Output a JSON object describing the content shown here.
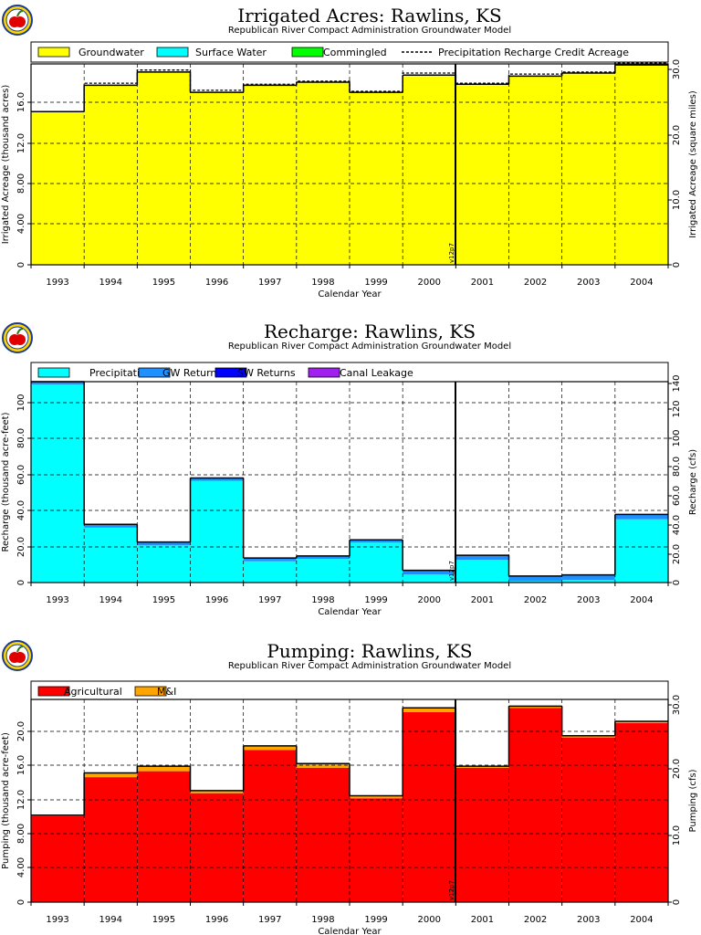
{
  "chart_data": [
    {
      "type": "bar",
      "stacked": true,
      "title": "Irrigated Acres: Rawlins, KS",
      "subtitle": "Republican River Compact Administration Groundwater Model",
      "xlabel": "Calendar Year",
      "ylabel": "Irrigated Acreage (thousand acres)",
      "ylabel_right": "Irrigated Acreage (square miles)",
      "categories": [
        "1993",
        "1994",
        "1995",
        "1996",
        "1997",
        "1998",
        "1999",
        "2000",
        "2001",
        "2002",
        "2003",
        "2004"
      ],
      "series": [
        {
          "name": "Groundwater",
          "color": "#ffff00",
          "values": [
            15.1,
            17.7,
            19.0,
            17.0,
            17.7,
            18.0,
            17.0,
            18.7,
            17.8,
            18.6,
            18.9,
            19.7
          ]
        },
        {
          "name": "Surface Water",
          "color": "#00ffff",
          "values": [
            0,
            0,
            0,
            0,
            0,
            0,
            0,
            0,
            0,
            0,
            0,
            0
          ]
        },
        {
          "name": "Commingled",
          "color": "#00ff00",
          "values": [
            0,
            0,
            0,
            0,
            0,
            0,
            0,
            0,
            0,
            0,
            0,
            0
          ]
        }
      ],
      "line_series": {
        "name": "Precipitation Recharge Credit Acreage",
        "values": [
          15.1,
          17.9,
          19.2,
          17.2,
          17.8,
          18.1,
          17.1,
          18.9,
          17.9,
          18.8,
          19.0,
          19.9
        ]
      },
      "ylim": [
        0,
        19.8
      ],
      "yticks": [
        "0",
        "4.00",
        "8.00",
        "12.0",
        "16.0"
      ],
      "yticks_right": [
        "0",
        "10.0",
        "20.0",
        "30.0"
      ],
      "marker_label": "v12p7"
    },
    {
      "type": "bar",
      "stacked": true,
      "title": "Recharge: Rawlins, KS",
      "subtitle": "Republican River Compact Administration Groundwater Model",
      "xlabel": "Calendar Year",
      "ylabel": "Recharge (thousand acre-feet)",
      "ylabel_right": "Recharge (cfs)",
      "categories": [
        "1993",
        "1994",
        "1995",
        "1996",
        "1997",
        "1998",
        "1999",
        "2000",
        "2001",
        "2002",
        "2003",
        "2004"
      ],
      "series": [
        {
          "name": "Precipitation",
          "color": "#00ffff",
          "values": [
            109.0,
            30.2,
            20.5,
            56.0,
            11.7,
            13.0,
            22.0,
            4.5,
            12.5,
            0.8,
            1.5,
            34.8
          ]
        },
        {
          "name": "GW Returns",
          "color": "#1e90ff",
          "values": [
            1.5,
            1.8,
            1.8,
            1.5,
            1.8,
            1.6,
            1.5,
            2.2,
            2.5,
            2.8,
            2.7,
            2.7
          ]
        },
        {
          "name": "SW Returns",
          "color": "#0000ff",
          "values": [
            0,
            0,
            0,
            0,
            0,
            0,
            0,
            0,
            0,
            0,
            0,
            0
          ]
        },
        {
          "name": "Canal Leakage",
          "color": "#a020f0",
          "values": [
            0,
            0,
            0,
            0,
            0,
            0,
            0,
            0,
            0,
            0,
            0,
            0
          ]
        }
      ],
      "ylim": [
        0,
        110.5
      ],
      "yticks": [
        "0",
        "20.0",
        "40.0",
        "60.0",
        "80.0",
        "100"
      ],
      "yticks_right": [
        "0",
        "20.0",
        "40.0",
        "60.0",
        "80.0",
        "100",
        "120",
        "140"
      ],
      "marker_label": "v12p7"
    },
    {
      "type": "bar",
      "stacked": true,
      "title": "Pumping: Rawlins, KS",
      "subtitle": "Republican River Compact Administration Groundwater Model",
      "xlabel": "Calendar Year",
      "ylabel": "Pumping (thousand acre-feet)",
      "ylabel_right": "Pumping (cfs)",
      "categories": [
        "1993",
        "1994",
        "1995",
        "1996",
        "1997",
        "1998",
        "1999",
        "2000",
        "2001",
        "2002",
        "2003",
        "2004"
      ],
      "series": [
        {
          "name": "Agricultural",
          "color": "#ff0000",
          "values": [
            10.2,
            14.8,
            15.5,
            12.9,
            18.0,
            15.9,
            12.3,
            22.5,
            15.9,
            23.0,
            19.5,
            21.2
          ]
        },
        {
          "name": "M&I",
          "color": "#ffa500",
          "values": [
            0.1,
            0.5,
            0.6,
            0.3,
            0.5,
            0.5,
            0.3,
            0.5,
            0.2,
            0.2,
            0.2,
            0.2
          ]
        }
      ],
      "ylim": [
        0,
        24.0
      ],
      "yticks": [
        "0",
        "4.00",
        "8.00",
        "12.0",
        "16.0",
        "20.0"
      ],
      "yticks_right": [
        "0",
        "10.0",
        "20.0",
        "30.0"
      ],
      "marker_label": "v12p7"
    }
  ]
}
